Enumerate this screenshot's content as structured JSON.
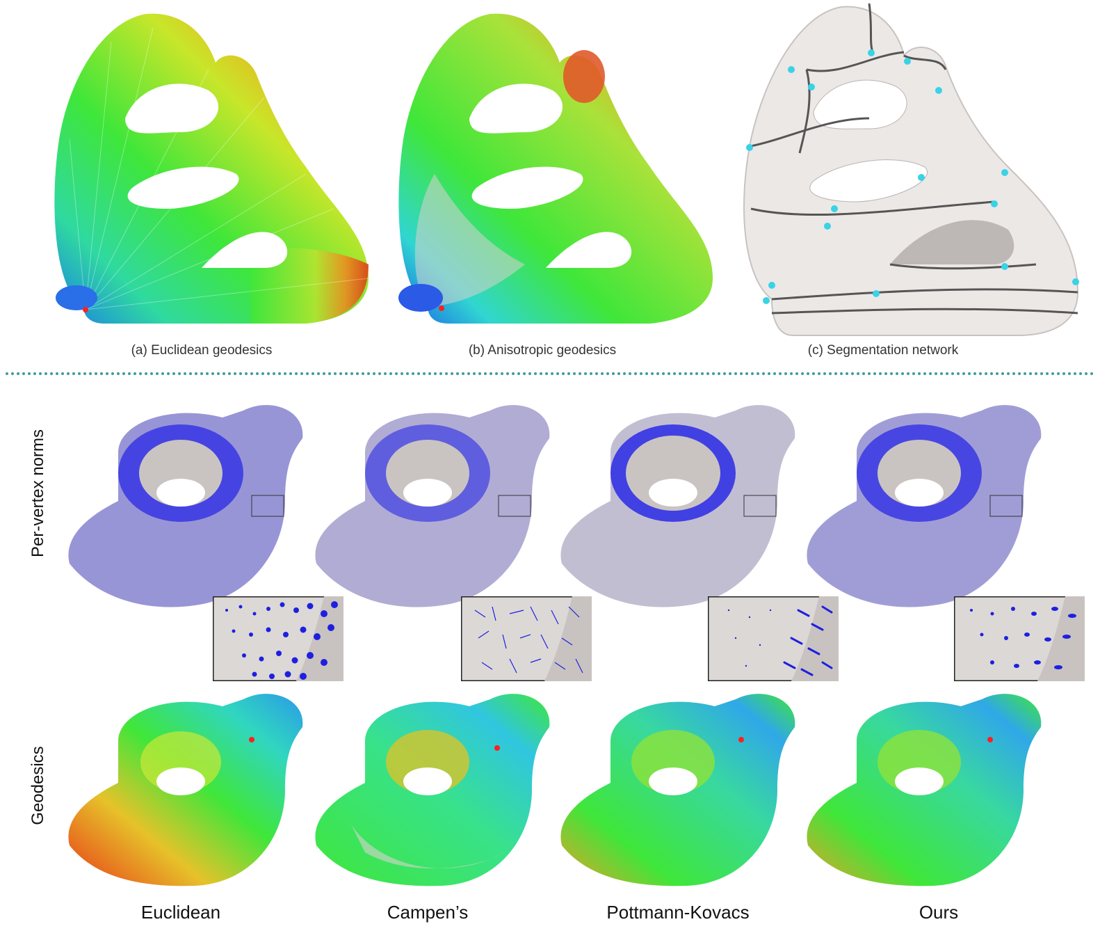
{
  "top_captions": {
    "a": "(a) Euclidean geodesics",
    "b": "(b) Anisotropic geodesics",
    "c": "(c) Segmentation network"
  },
  "row_labels": {
    "norms": "Per-vertex norms",
    "geodesics": "Geodesics"
  },
  "column_labels": [
    "Euclidean",
    "Campen’s",
    "Pottmann-Kovacs",
    "Ours"
  ],
  "colors": {
    "divider": "#3f9c97",
    "mesh_gray": "#d9d4d1",
    "norm_blue": "#1f1fe0",
    "source_point": "#ff2020",
    "node_cyan": "#38d3e6"
  }
}
